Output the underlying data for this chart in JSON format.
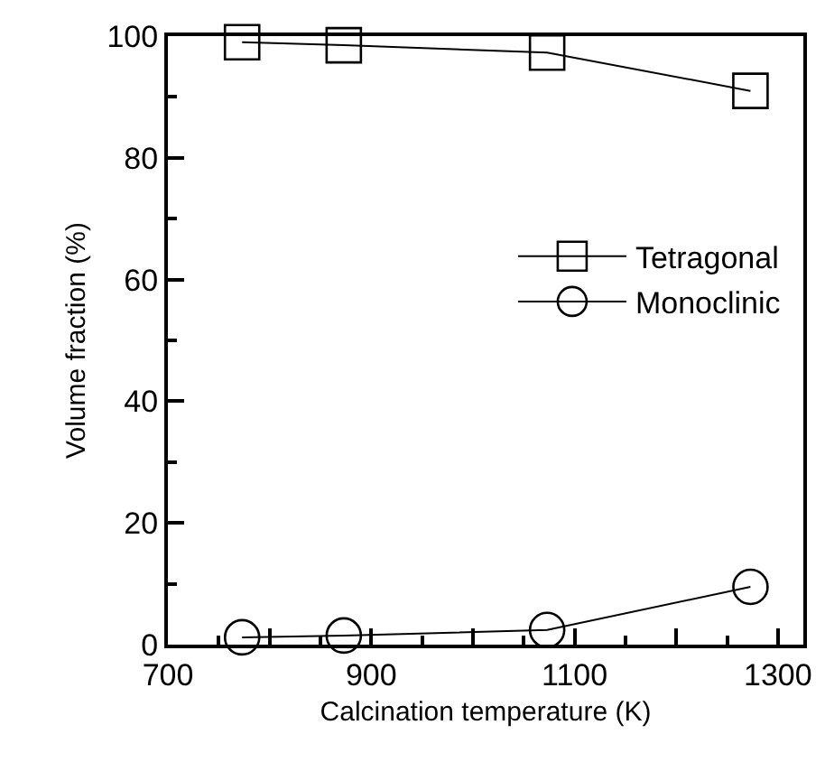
{
  "chart_data": {
    "type": "line",
    "xlabel": "Calcination temperature (K)",
    "ylabel": "Volume fraction (%)",
    "x": [
      773,
      873,
      1073,
      1273
    ],
    "series": [
      {
        "name": "Tetragonal",
        "color": "#000000",
        "marker": "square",
        "values": [
          99,
          98.5,
          97.3,
          91
        ]
      },
      {
        "name": "Monoclinic",
        "color": "#000000",
        "marker": "circle",
        "values": [
          1.2,
          1.5,
          2.4,
          9.5
        ]
      }
    ],
    "xlim": [
      700,
      1325
    ],
    "xticks": [
      700,
      {
        "value": 800,
        "label": null
      },
      900,
      {
        "value": 1000,
        "label": null
      },
      1100,
      {
        "value": 1200,
        "label": null
      },
      1300
    ],
    "ylim": [
      0,
      100
    ],
    "yticks": [
      0,
      20,
      40,
      60,
      80,
      100
    ],
    "grid": false,
    "legend": "right",
    "line_style": "solid"
  }
}
